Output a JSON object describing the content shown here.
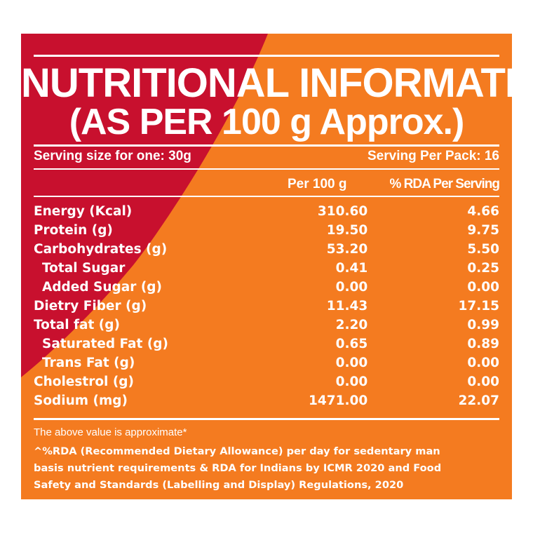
{
  "colors": {
    "orange": "#F47B20",
    "red": "#C8102E",
    "text": "#FFFFFF"
  },
  "title": {
    "line1": "NUTRITIONAL INFORMATION",
    "line2": "(AS PER 100 g Approx.)"
  },
  "serving": {
    "size": "Serving size for one: 30g",
    "per_pack": "Serving Per Pack: 16"
  },
  "columns": {
    "per100": "Per 100 g",
    "rda": "% RDA Per Serving"
  },
  "rows": [
    {
      "label": "Energy (Kcal)",
      "per100": "310.60",
      "rda": "4.66"
    },
    {
      "label": "Protein (g)",
      "per100": "19.50",
      "rda": "9.75"
    },
    {
      "label": "Carbohydrates (g)",
      "per100": "53.20",
      "rda": "5.50"
    },
    {
      "label": "Total Sugar",
      "per100": "0.41",
      "rda": "0.25"
    },
    {
      "label": "Added Sugar (g)",
      "per100": "0.00",
      "rda": "0.00"
    },
    {
      "label": "Dietry Fiber (g)",
      "per100": "11.43",
      "rda": "17.15"
    },
    {
      "label": "Total fat (g)",
      "per100": "2.20",
      "rda": "0.99"
    },
    {
      "label": "Saturated Fat (g)",
      "per100": "0.65",
      "rda": "0.89"
    },
    {
      "label": "Trans Fat (g)",
      "per100": "0.00",
      "rda": "0.00"
    },
    {
      "label": "Cholestrol (g)",
      "per100": "0.00",
      "rda": "0.00"
    },
    {
      "label": "Sodium (mg)",
      "per100": "1471.00",
      "rda": "22.07"
    }
  ],
  "notes": {
    "approx": "The above value is approximate*",
    "footnote_lines": [
      "^%RDA (Recommended Dietary Allowance) per day for sedentary man",
      "basis nutrient requirements & RDA for Indians by ICMR 2020 and Food",
      "Safety and Standards (Labelling and Display) Regulations, 2020"
    ]
  }
}
